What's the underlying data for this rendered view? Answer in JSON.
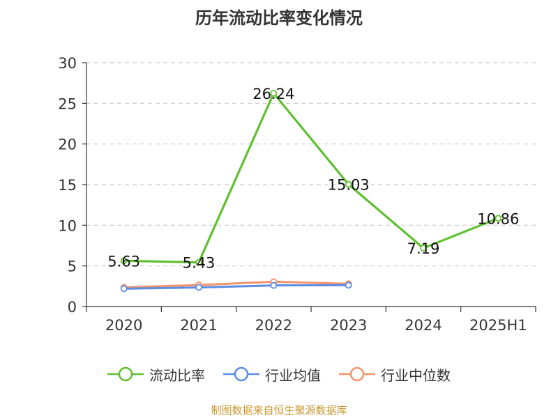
{
  "chart_data": {
    "type": "line",
    "title": "历年流动比率变化情况",
    "categories": [
      "2020",
      "2021",
      "2022",
      "2023",
      "2024",
      "2025H1"
    ],
    "ylim": [
      0,
      30
    ],
    "yticks": [
      0,
      5,
      10,
      15,
      20,
      25,
      30
    ],
    "grid": true,
    "legend_position": "bottom",
    "series": [
      {
        "name": "流动比率",
        "color": "#5ec02f",
        "values": [
          5.63,
          5.43,
          26.24,
          15.03,
          7.19,
          10.86
        ],
        "data_labels": [
          "5.63",
          "5.43",
          "26.24",
          "15.03",
          "7.19",
          "10.86"
        ]
      },
      {
        "name": "行业均值",
        "color": "#5b8ce6",
        "values": [
          2.2,
          2.35,
          2.6,
          2.62,
          null,
          null
        ]
      },
      {
        "name": "行业中位数",
        "color": "#f2936a",
        "values": [
          2.35,
          2.65,
          3.05,
          2.8,
          null,
          null
        ]
      }
    ]
  },
  "source": "制图数据来自恒生聚源数据库"
}
